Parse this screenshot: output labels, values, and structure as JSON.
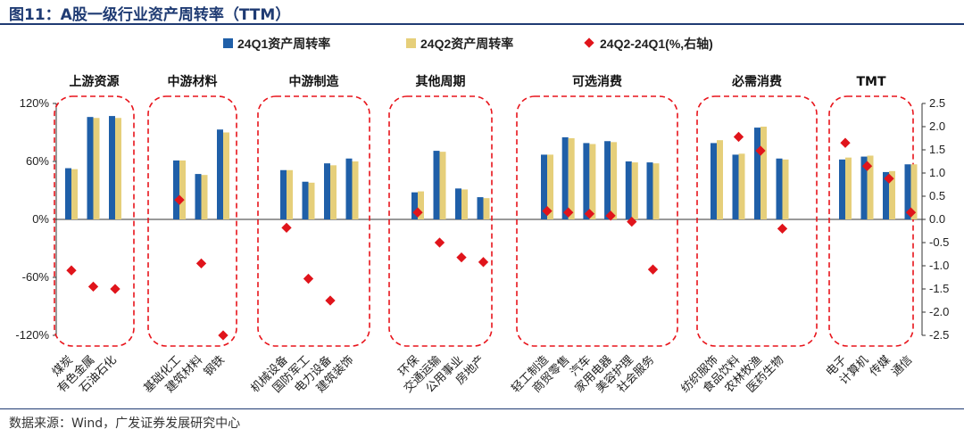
{
  "figure_title": "图11：A股一级行业资产周转率（TTM）",
  "source": "数据来源：Wind，广发证券发展研究中心",
  "colors": {
    "q1": "#1f5fa8",
    "q2": "#e6cf7a",
    "diff": "#e0141b",
    "box": "#e8141b",
    "title": "#1f3b73"
  },
  "chart_data": {
    "type": "bar",
    "legend": [
      "24Q1资产周转率",
      "24Q2资产周转率",
      "24Q2-24Q1(%,右轴)"
    ],
    "y_left": {
      "lim": [
        -120,
        120
      ],
      "ticks": [
        120,
        60,
        0,
        -60,
        -120
      ],
      "tick_labels": [
        "120%",
        "60%",
        "0%",
        "-60%",
        "-120%"
      ]
    },
    "y_right": {
      "lim": [
        -2.5,
        2.5
      ],
      "ticks": [
        2.5,
        2.0,
        1.5,
        1.0,
        0.5,
        0.0,
        -0.5,
        -1.0,
        -1.5,
        -2.0,
        -2.5
      ],
      "tick_labels": [
        "2.5",
        "2.0",
        "1.5",
        "1.0",
        "0.5",
        "0.0",
        "-0.5",
        "-1.0",
        "-1.5",
        "-2.0",
        "-2.5"
      ]
    },
    "groups": [
      {
        "name": "上游资源",
        "categories": [
          "煤炭",
          "有色金属",
          "石油石化"
        ],
        "q1": [
          53,
          106,
          107
        ],
        "q2": [
          52,
          105,
          105
        ],
        "diff": [
          -1.1,
          -1.45,
          -1.5
        ]
      },
      {
        "name": "中游材料",
        "categories": [
          "基础化工",
          "建筑材料",
          "钢铁"
        ],
        "q1": [
          61,
          47,
          93
        ],
        "q2": [
          61,
          46,
          90
        ],
        "diff": [
          0.42,
          -0.95,
          -2.5
        ]
      },
      {
        "name": "中游制造",
        "categories": [
          "机械设备",
          "国防军工",
          "电力设备",
          "建筑装饰"
        ],
        "q1": [
          51,
          39,
          58,
          63
        ],
        "q2": [
          51,
          38,
          56,
          60
        ],
        "diff": [
          -0.18,
          -1.28,
          -1.75,
          null
        ]
      },
      {
        "name": "其他周期",
        "categories": [
          "环保",
          "交通运输",
          "公用事业",
          "房地产"
        ],
        "q1": [
          28,
          71,
          32,
          23
        ],
        "q2": [
          29,
          70,
          31,
          22
        ],
        "diff": [
          0.15,
          -0.5,
          -0.82,
          -0.92
        ]
      },
      {
        "name": "可选消费",
        "categories": [
          "轻工制造",
          "商贸零售",
          "汽车",
          "家用电器",
          "美容护理",
          "社会服务"
        ],
        "q1": [
          67,
          85,
          79,
          81,
          60,
          59
        ],
        "q2": [
          67,
          84,
          78,
          80,
          59,
          58
        ],
        "diff": [
          0.18,
          0.15,
          0.12,
          0.08,
          -0.05,
          -1.08
        ]
      },
      {
        "name": "必需消费",
        "categories": [
          "纺织服饰",
          "食品饮料",
          "农林牧渔",
          "医药生物"
        ],
        "q1": [
          79,
          67,
          95,
          63
        ],
        "q2": [
          82,
          68,
          96,
          62
        ],
        "diff": [
          null,
          1.78,
          1.48,
          -0.2
        ]
      },
      {
        "name": "TMT",
        "categories": [
          "电子",
          "计算机",
          "传媒",
          "通信"
        ],
        "q1": [
          62,
          65,
          49,
          57
        ],
        "q2": [
          64,
          66,
          50,
          57
        ],
        "diff": [
          1.65,
          1.15,
          0.88,
          0.15
        ]
      }
    ]
  }
}
